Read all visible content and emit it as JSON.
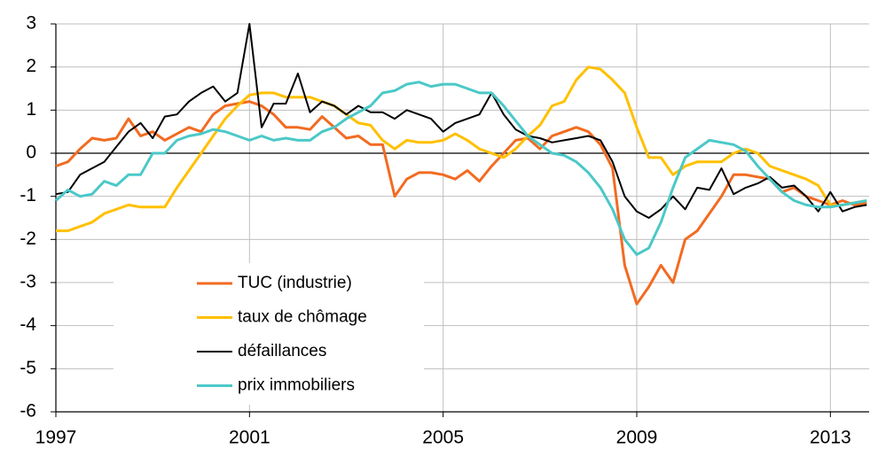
{
  "chart_data": {
    "type": "line",
    "x": [
      1997,
      1997.25,
      1997.5,
      1997.75,
      1998,
      1998.25,
      1998.5,
      1998.75,
      1999,
      1999.25,
      1999.5,
      1999.75,
      2000,
      2000.25,
      2000.5,
      2000.75,
      2001,
      2001.25,
      2001.5,
      2001.75,
      2002,
      2002.25,
      2002.5,
      2002.75,
      2003,
      2003.25,
      2003.5,
      2003.75,
      2004,
      2004.25,
      2004.5,
      2004.75,
      2005,
      2005.25,
      2005.5,
      2005.75,
      2006,
      2006.25,
      2006.5,
      2006.75,
      2007,
      2007.25,
      2007.5,
      2007.75,
      2008,
      2008.25,
      2008.5,
      2008.75,
      2009,
      2009.25,
      2009.5,
      2009.75,
      2010,
      2010.25,
      2010.5,
      2010.75,
      2011,
      2011.25,
      2011.5,
      2011.75,
      2012,
      2012.25,
      2012.5,
      2012.75,
      2013,
      2013.25,
      2013.5,
      2013.75
    ],
    "series": [
      {
        "name": "TUC (industrie)",
        "color": "#f26b21",
        "values": [
          -0.3,
          -0.2,
          0.1,
          0.35,
          0.3,
          0.35,
          0.8,
          0.4,
          0.5,
          0.3,
          0.45,
          0.6,
          0.5,
          0.9,
          1.1,
          1.15,
          1.2,
          1.1,
          0.9,
          0.6,
          0.6,
          0.55,
          0.85,
          0.6,
          0.35,
          0.4,
          0.2,
          0.2,
          -1.0,
          -0.6,
          -0.45,
          -0.45,
          -0.5,
          -0.6,
          -0.4,
          -0.65,
          -0.3,
          0.0,
          0.3,
          0.35,
          0.1,
          0.4,
          0.5,
          0.6,
          0.5,
          0.2,
          -0.35,
          -2.6,
          -3.5,
          -3.1,
          -2.6,
          -3.0,
          -2.0,
          -1.8,
          -1.4,
          -1.0,
          -0.5,
          -0.5,
          -0.55,
          -0.6,
          -0.9,
          -0.8,
          -1.0,
          -1.1,
          -1.2,
          -1.1,
          -1.2,
          -1.15
        ]
      },
      {
        "name": "taux de chômage",
        "color": "#ffc000",
        "values": [
          -1.8,
          -1.8,
          -1.7,
          -1.6,
          -1.4,
          -1.3,
          -1.2,
          -1.25,
          -1.25,
          -1.25,
          -0.8,
          -0.4,
          0.0,
          0.4,
          0.8,
          1.1,
          1.35,
          1.4,
          1.4,
          1.3,
          1.3,
          1.3,
          1.2,
          1.1,
          0.9,
          0.7,
          0.65,
          0.3,
          0.1,
          0.3,
          0.25,
          0.25,
          0.3,
          0.45,
          0.3,
          0.1,
          0.0,
          -0.1,
          0.1,
          0.4,
          0.65,
          1.1,
          1.2,
          1.7,
          2.0,
          1.95,
          1.7,
          1.4,
          0.6,
          -0.1,
          -0.1,
          -0.5,
          -0.3,
          -0.2,
          -0.2,
          -0.2,
          0.0,
          0.1,
          0.0,
          -0.3,
          -0.4,
          -0.5,
          -0.6,
          -0.75,
          -1.2,
          -1.2,
          -1.15,
          -1.1
        ]
      },
      {
        "name": "défaillances",
        "color": "#000000",
        "values": [
          -0.95,
          -0.9,
          -0.5,
          -0.35,
          -0.2,
          0.15,
          0.5,
          0.7,
          0.35,
          0.85,
          0.9,
          1.2,
          1.4,
          1.55,
          1.2,
          1.4,
          3.0,
          0.6,
          1.15,
          1.15,
          1.85,
          0.95,
          1.2,
          1.1,
          0.9,
          1.1,
          0.95,
          0.95,
          0.8,
          1.0,
          0.9,
          0.8,
          0.5,
          0.7,
          0.8,
          0.9,
          1.4,
          0.9,
          0.55,
          0.4,
          0.35,
          0.25,
          0.3,
          0.35,
          0.4,
          0.3,
          -0.2,
          -1.0,
          -1.35,
          -1.5,
          -1.3,
          -1.0,
          -1.3,
          -0.8,
          -0.85,
          -0.35,
          -0.95,
          -0.8,
          -0.7,
          -0.55,
          -0.8,
          -0.75,
          -1.0,
          -1.35,
          -0.9,
          -1.35,
          -1.25,
          -1.2
        ]
      },
      {
        "name": "prix immobiliers",
        "color": "#4bc8c8",
        "values": [
          -1.1,
          -0.85,
          -1.0,
          -0.95,
          -0.65,
          -0.75,
          -0.5,
          -0.5,
          0.0,
          0.0,
          0.3,
          0.4,
          0.45,
          0.55,
          0.5,
          0.4,
          0.3,
          0.4,
          0.3,
          0.35,
          0.3,
          0.3,
          0.5,
          0.6,
          0.8,
          0.95,
          1.1,
          1.4,
          1.45,
          1.6,
          1.65,
          1.55,
          1.6,
          1.6,
          1.5,
          1.4,
          1.4,
          1.1,
          0.75,
          0.4,
          0.2,
          0.0,
          -0.05,
          -0.2,
          -0.45,
          -0.8,
          -1.3,
          -2.0,
          -2.35,
          -2.2,
          -1.6,
          -0.8,
          -0.1,
          0.1,
          0.3,
          0.25,
          0.2,
          0.05,
          -0.3,
          -0.6,
          -0.9,
          -1.1,
          -1.2,
          -1.25,
          -1.25,
          -1.2,
          -1.15,
          -1.1
        ]
      }
    ],
    "xlim": [
      1997,
      2013.8
    ],
    "xticks": [
      1997,
      2001,
      2005,
      2009,
      2013
    ],
    "ylim": [
      -6,
      3
    ],
    "yticks": [
      -6,
      -5,
      -4,
      -3,
      -2,
      -1,
      0,
      1,
      2,
      3
    ],
    "grid": true,
    "legend": "bottom-left"
  }
}
